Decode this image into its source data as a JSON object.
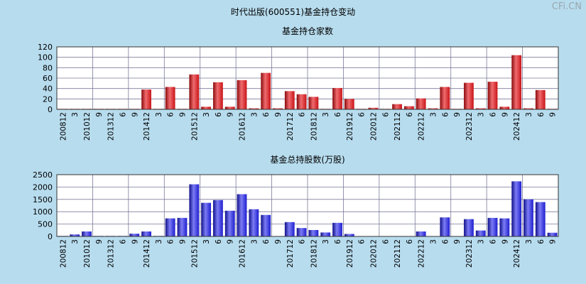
{
  "page": {
    "title": "时代出版(600551)基金持仓变动",
    "watermark": "CFi.CN"
  },
  "chart_data": [
    {
      "type": "bar",
      "title": "基金持仓家数",
      "ylim": [
        0,
        120
      ],
      "yticks": [
        0,
        20,
        40,
        60,
        80,
        100,
        120
      ],
      "color": "#e0191e",
      "x_labels": [
        "200812",
        "3",
        "201012",
        "9",
        "201312",
        "6",
        "9",
        "201412",
        "3",
        "6",
        "9",
        "201512",
        "3",
        "6",
        "9",
        "201612",
        "3",
        "6",
        "9",
        "201712",
        "6",
        "201812",
        "3",
        "6",
        "201912",
        "6",
        "202012",
        "6",
        "202112",
        "6",
        "202212",
        "3",
        "6",
        "9",
        "202312",
        "3",
        "6",
        "9",
        "202412",
        "3",
        "6",
        "9"
      ],
      "values": [
        1,
        1,
        1,
        1,
        1,
        1,
        1,
        38,
        1,
        43,
        1,
        67,
        5,
        52,
        5,
        56,
        2,
        70,
        2,
        35,
        29,
        24,
        1,
        41,
        20,
        1,
        3,
        1,
        10,
        6,
        21,
        2,
        43,
        1,
        51,
        2,
        53,
        5,
        104,
        2,
        37,
        1
      ]
    },
    {
      "type": "bar",
      "title": "基金总持股数(万股)",
      "ylim": [
        0,
        2500
      ],
      "yticks": [
        0,
        500,
        1000,
        1500,
        2000,
        2500
      ],
      "color": "#2020e0",
      "x_labels": [
        "200812",
        "3",
        "201012",
        "9",
        "201312",
        "6",
        "9",
        "201412",
        "3",
        "6",
        "9",
        "201512",
        "3",
        "6",
        "9",
        "201612",
        "3",
        "6",
        "9",
        "201712",
        "6",
        "201812",
        "3",
        "6",
        "201912",
        "6",
        "202012",
        "6",
        "202112",
        "6",
        "202212",
        "3",
        "6",
        "9",
        "202312",
        "3",
        "6",
        "9",
        "202412",
        "3",
        "6",
        "9"
      ],
      "values": [
        20,
        80,
        200,
        20,
        20,
        20,
        110,
        200,
        20,
        730,
        750,
        2110,
        1360,
        1470,
        1040,
        1710,
        1100,
        870,
        10,
        580,
        340,
        260,
        160,
        550,
        100,
        10,
        10,
        10,
        10,
        10,
        200,
        10,
        770,
        10,
        700,
        240,
        750,
        730,
        2230,
        1500,
        1390,
        150
      ]
    }
  ]
}
